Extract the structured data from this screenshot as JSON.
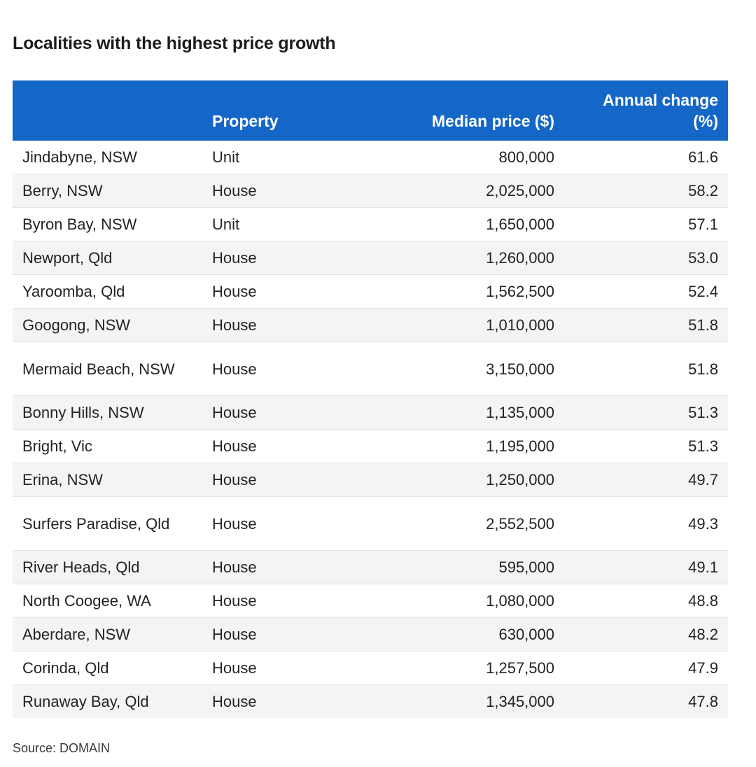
{
  "title": "Localities with the highest price growth",
  "source": "Source: DOMAIN",
  "chart_data": {
    "type": "table",
    "title": "Localities with the highest price growth",
    "columns": [
      "",
      "Property",
      "Median price ($)",
      "Annual change (%)"
    ],
    "rows": [
      {
        "locality": "Jindabyne, NSW",
        "property": "Unit",
        "median_price": "800,000",
        "annual_change": "61.6"
      },
      {
        "locality": "Berry, NSW",
        "property": "House",
        "median_price": "2,025,000",
        "annual_change": "58.2"
      },
      {
        "locality": "Byron Bay, NSW",
        "property": "Unit",
        "median_price": "1,650,000",
        "annual_change": "57.1"
      },
      {
        "locality": "Newport, Qld",
        "property": "House",
        "median_price": "1,260,000",
        "annual_change": "53.0"
      },
      {
        "locality": "Yaroomba, Qld",
        "property": "House",
        "median_price": "1,562,500",
        "annual_change": "52.4"
      },
      {
        "locality": "Googong, NSW",
        "property": "House",
        "median_price": "1,010,000",
        "annual_change": "51.8"
      },
      {
        "locality": "Mermaid Beach, NSW",
        "property": "House",
        "median_price": "3,150,000",
        "annual_change": "51.8"
      },
      {
        "locality": "Bonny Hills, NSW",
        "property": "House",
        "median_price": "1,135,000",
        "annual_change": "51.3"
      },
      {
        "locality": "Bright, Vic",
        "property": "House",
        "median_price": "1,195,000",
        "annual_change": "51.3"
      },
      {
        "locality": "Erina, NSW",
        "property": "House",
        "median_price": "1,250,000",
        "annual_change": "49.7"
      },
      {
        "locality": "Surfers Paradise, Qld",
        "property": "House",
        "median_price": "2,552,500",
        "annual_change": "49.3"
      },
      {
        "locality": "River Heads, Qld",
        "property": "House",
        "median_price": "595,000",
        "annual_change": "49.1"
      },
      {
        "locality": "North Coogee, WA",
        "property": "House",
        "median_price": "1,080,000",
        "annual_change": "48.8"
      },
      {
        "locality": "Aberdare, NSW",
        "property": "House",
        "median_price": "630,000",
        "annual_change": "48.2"
      },
      {
        "locality": "Corinda, Qld",
        "property": "House",
        "median_price": "1,257,500",
        "annual_change": "47.9"
      },
      {
        "locality": "Runaway Bay, Qld",
        "property": "House",
        "median_price": "1,345,000",
        "annual_change": "47.8"
      }
    ]
  },
  "colors": {
    "header_bg": "#1567c7",
    "header_text": "#ffffff",
    "row_alt_bg": "#f4f4f4"
  }
}
